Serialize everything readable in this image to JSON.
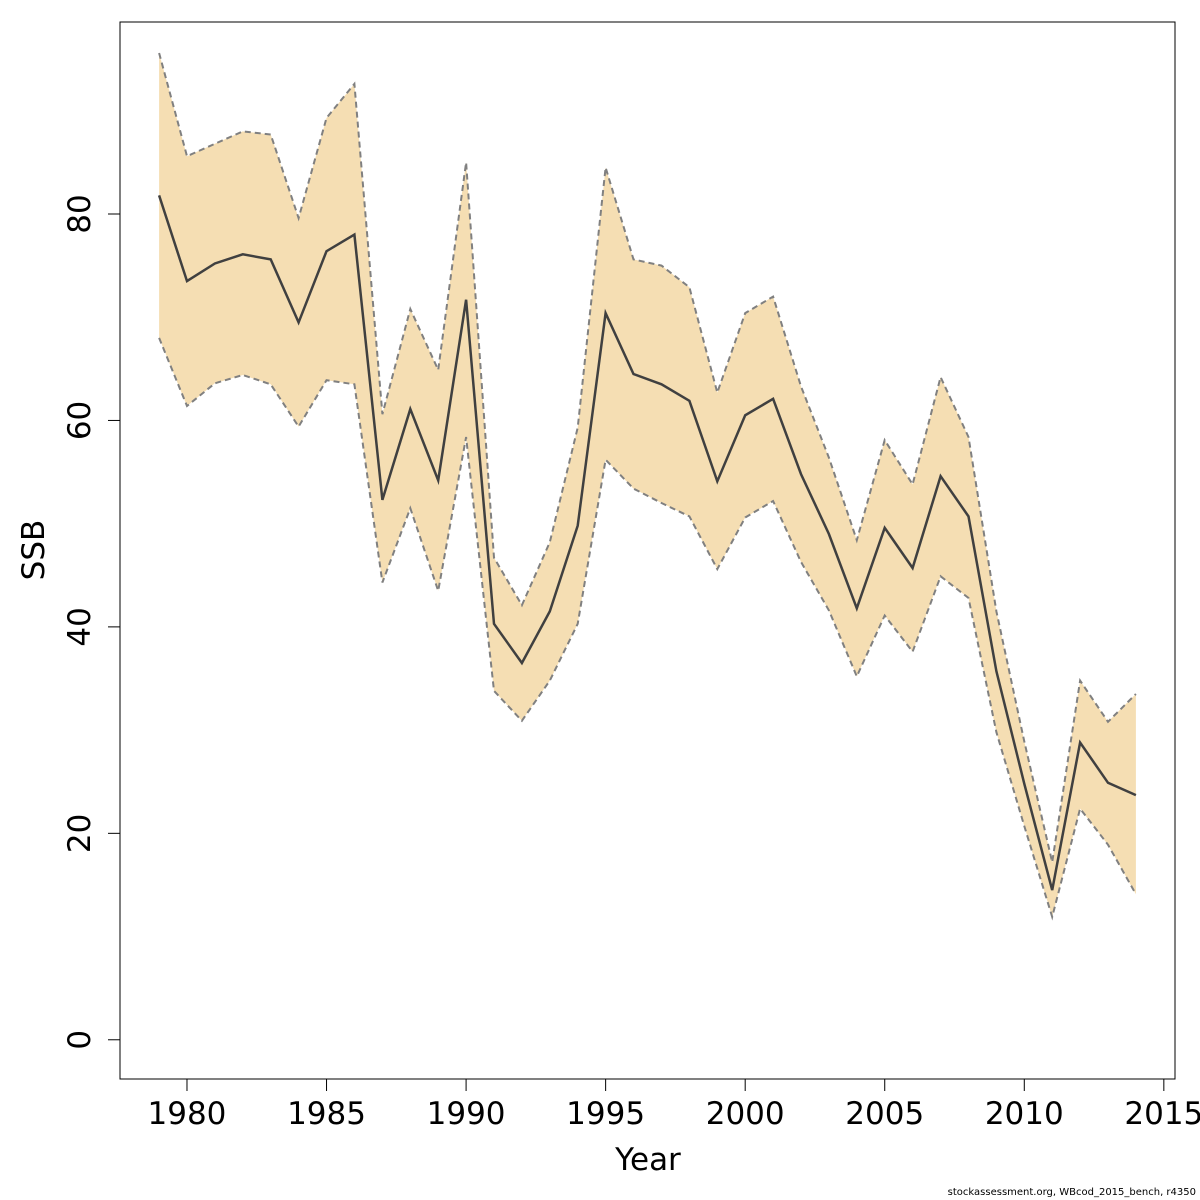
{
  "chart_data": {
    "type": "line",
    "xlabel": "Year",
    "ylabel": "SSB",
    "xlim": [
      1977.6,
      2015.4
    ],
    "ylim": [
      -3.8,
      98.6
    ],
    "xticks": [
      1980,
      1985,
      1990,
      1995,
      2000,
      2005,
      2010,
      2015
    ],
    "yticks": [
      0,
      20,
      40,
      60,
      80
    ],
    "grid": false,
    "legend": "none",
    "band_color": "#F5DEB3",
    "line_color": "#404040",
    "band_edge_color": "#808080",
    "x": [
      1979,
      1980,
      1981,
      1982,
      1983,
      1984,
      1985,
      1986,
      1987,
      1988,
      1989,
      1990,
      1991,
      1992,
      1993,
      1994,
      1995,
      1996,
      1997,
      1998,
      1999,
      2000,
      2001,
      2002,
      2003,
      2004,
      2005,
      2006,
      2007,
      2008,
      2009,
      2010,
      2011,
      2012,
      2013,
      2014
    ],
    "series": [
      {
        "values": [
          81.8,
          73.5,
          75.2,
          76.1,
          75.6,
          69.5,
          76.4,
          78.0,
          52.3,
          61.1,
          54.2,
          71.7,
          40.3,
          36.5,
          41.5,
          49.8,
          70.4,
          64.5,
          63.5,
          61.9,
          54.1,
          60.5,
          62.1,
          54.8,
          49.0,
          41.8,
          49.6,
          45.7,
          54.6,
          50.7,
          35.7,
          24.8,
          14.5,
          28.8,
          24.9,
          23.7
        ]
      }
    ],
    "band_upper": [
      95.6,
      85.6,
      86.8,
      88.0,
      87.7,
      79.6,
      89.3,
      92.6,
      60.6,
      70.8,
      64.9,
      85.0,
      46.7,
      42.1,
      48.2,
      59.3,
      84.5,
      75.6,
      75.0,
      72.9,
      62.7,
      70.4,
      72.0,
      63.3,
      56.4,
      48.4,
      58.1,
      53.8,
      64.2,
      58.4,
      41.5,
      28.9,
      17.2,
      34.8,
      30.8,
      33.5
    ],
    "band_lower": [
      68.0,
      61.4,
      63.6,
      64.4,
      63.5,
      59.4,
      63.9,
      63.5,
      44.3,
      51.5,
      43.5,
      58.4,
      33.8,
      30.9,
      34.8,
      40.3,
      56.2,
      53.4,
      52.0,
      50.7,
      45.6,
      50.6,
      52.2,
      46.3,
      41.6,
      35.2,
      41.1,
      37.6,
      44.9,
      42.8,
      29.8,
      20.7,
      11.9,
      22.4,
      18.9,
      14.1
    ]
  },
  "credit": "stockassessment.org, WBcod_2015_bench, r4350"
}
